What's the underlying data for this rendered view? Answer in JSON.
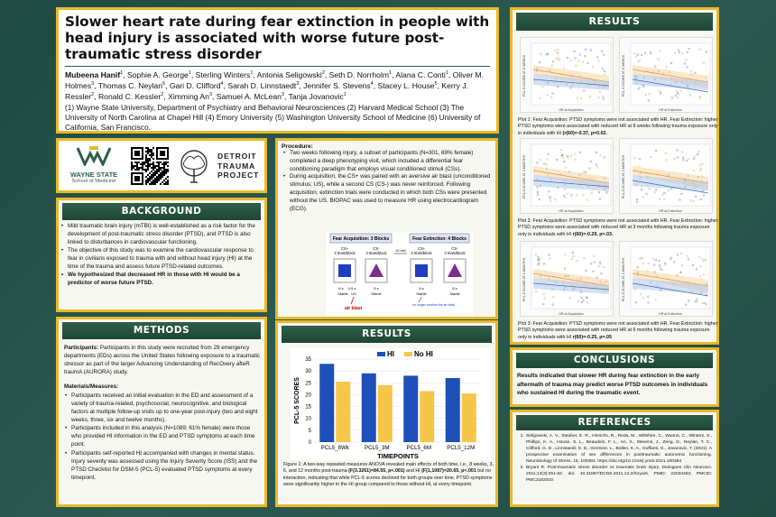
{
  "title": "Slower heart rate during fear extinction in people with head injury is associated with worse future post-traumatic stress disorder",
  "authors": [
    {
      "name": "Mubeena Hanif",
      "sup": "1",
      "bold": true
    },
    {
      "name": ", Sophie A. George",
      "sup": "1"
    },
    {
      "name": ", Sterling Winters",
      "sup": "1"
    },
    {
      "name": ", Antonia Seligowski",
      "sup": "2"
    },
    {
      "name": ", Seth D. Norrholm",
      "sup": "1"
    },
    {
      "name": ", Alana C. Conti",
      "sup": "1"
    },
    {
      "name": ", Oliver M. Holmes",
      "sup": "3"
    },
    {
      "name": ", Thomas C. Neylan",
      "sup": "6"
    },
    {
      "name": ", Gari D. Clifford",
      "sup": "4"
    },
    {
      "name": ", Sarah D. Linnstaedt",
      "sup": "3"
    },
    {
      "name": ", Jennifer S. Stevens",
      "sup": "4"
    },
    {
      "name": ", Stacey L. House",
      "sup": "5"
    },
    {
      "name": ", Kerry J. Ressler",
      "sup": "2"
    },
    {
      "name": ", Ronald C. Kessler",
      "sup": "2"
    },
    {
      "name": ", Ximming An",
      "sup": "3"
    },
    {
      "name": ", Samuel A. McLean",
      "sup": "3"
    },
    {
      "name": ", Tanja Jovanovic",
      "sup": "1"
    }
  ],
  "affiliations": "(1) Wayne State University, Department of Psychiatry and Behavioral Neurosciences (2) Harvard Medical School (3) The University of North Carolina at Chapel Hill (4) Emory University (5) Washington University School of Medicine (6) University of California, San Francisco.",
  "logos": {
    "wsu1": "WAYNE STATE",
    "wsu2": "School of Medicine",
    "dtp": "DETROIT TRAUMA PROJECT"
  },
  "background": {
    "header": "BACKGROUND",
    "items": [
      "Mild traumatic brain injury (mTBI) is well-established as a risk factor for the development of post-traumatic stress disorder (PTSD), and PTSD is also linked to disturbances in cardiovascular functioning.",
      "The objective of this study was to examine the cardiovascular response to fear in civilians exposed to trauma with and without head injury (HI) at the time of the trauma and assess future PTSD-related outcomes.",
      "We hypothesized that decreased HR in those with HI would be a predictor of worse future PTSD."
    ]
  },
  "methods": {
    "header": "METHODS",
    "participants_label": "Participants:",
    "participants": "Participants in this study were recruited from 29 emergency departments (EDs) across the United States following exposure to a traumatic stressor as part of the larger Advancing Understanding of RecOvery afteR traumA (AURORA) study.",
    "measures_label": "Materials/Measures:",
    "items": [
      "Participants received an initial evaluation in the ED and assessment of a variety of trauma-related, psychosocial, neurocognitive, and biological factors at multiple follow-up visits up to one-year post-injury (two and eight weeks, three, six and twelve months).",
      "Participants included in this analysis (N=1089; 61% female) were those who provided HI information in the ED and PTSD symptoms at each time point.",
      "Participants self-reported HI accompanied with changes in mental status. Injury severity was assessed using the Injury Severity Score (ISS) and the PTSD Checklist for DSM-5 (PCL-5) evaluated PTSD symptoms at every timepoint."
    ]
  },
  "procedure": {
    "label": "Procedure:",
    "items": [
      "Two weeks following injury, a subset of participants (N=301, 69% female) completed a deep phenotyping visit, which included a differential fear conditioning paradigm that employs visual conditioned stimuli (CSs).",
      "During acquisition, the CS+ was paired with an aversive air blast (unconditioned stimulus; US), while a second CS (CS-) was never reinforced. Following acquisition, extinction trials were conducted in which both CSs were presented without the US. BIOPAC was used to measure HR using electrocardiogram (ECG)."
    ]
  },
  "diagram": {
    "acq": "Fear Acquisition: 3 Blocks",
    "ext": "Fear Extinction: 4 Blocks",
    "gap": "10 min",
    "csplus": "CS+",
    "csminus": "CS-",
    "trials": "3 trials/block",
    "sec6": "6 s",
    "sec05": "0.5 s",
    "startle": "Startle",
    "us": "US",
    "airblast": "air blast",
    "noblast": "no longer receive the air blast"
  },
  "results_mid": {
    "header": "RESULTS",
    "caption_pre": "Figure 1: A two-way repeated measures ANOVA revealed main effects of both time, i.e., 8 weeks, 3, 6, and 12 months post-trauma ",
    "caption_b1": "(F(3.3261)=84.55, p<.001)",
    "caption_mid": " and HI ",
    "caption_b2": "(F(1,1087)=20.65, p<.001",
    "caption_post": " but no interaction, indicating that while PCL-5 scores declined for both groups over time, PTSD symptoms were significantly higher in the HI group compared to those without HI, at every timepoint."
  },
  "chart_data": {
    "type": "bar",
    "categories": [
      "PCL5_8Wk",
      "PCL5_3M",
      "PCL5_6M",
      "PCL5_12M"
    ],
    "series": [
      {
        "name": "HI",
        "values": [
          33,
          29,
          28,
          27
        ],
        "color": "#1f4fb8"
      },
      {
        "name": "No HI",
        "values": [
          25.5,
          24,
          21.5,
          20.5
        ],
        "color": "#f5c64a"
      }
    ],
    "xlabel": "TIMEPOINTS",
    "ylabel": "PCL-5 SCORES",
    "ylim": [
      0,
      35
    ],
    "yticks": [
      0,
      5,
      10,
      15,
      20,
      25,
      30,
      35
    ],
    "legend": "top"
  },
  "results_right": {
    "header": "RESULTS",
    "plot_labels": {
      "y1": "PCL-5 SCORE AT 8 WEEKS",
      "y2": "PCL-5 SCORE AT 3 MONTHS",
      "y3": "PCL-5 SCORE AT 6 MONTHS",
      "xa": "HR at Acquisition",
      "xe": "HR at Extinction"
    },
    "cap1": "Plot 1: Fear Acquisition: PTSD symptoms were not associated with HR. Fear Extinction: higher PTSD symptoms were associated with reduced HR at 8 weeks following trauma exposure only in individuals with HI ",
    "cap1b": "(r(60)=-0.37, p=0.02.",
    "cap2": "Plot 2: Fear Acquisition: PTSD symptoms were not associated with HR. Fear Extinction: higher PTSD symptoms were associated with reduced HR at 3 months following trauma exposure only in individuals with HI ",
    "cap2b": "r(60)=-0.29, p=.03.",
    "cap3": "Plot 3: Fear Acquisition: PTSD symptoms were not associated with HR. Fear Extinction: higher PTSD symptoms were associated with reduced HR at 6 months following trauma exposure only in individuals with HI ",
    "cap3b": "r(60)=-0.25, p=.05"
  },
  "conclusions": {
    "header": "CONCLUSIONS",
    "text": "Results indicated that slower HR during fear extinction in the early aftermath of trauma may predict worse PTSD outcomes in individuals who sustained HI during the traumatic event."
  },
  "references": {
    "header": "REFERENCES",
    "items": [
      "Seligowski, A. V., Steuber, E. R., Hinrichs, R., Reda, M., Wiltshire, C., Wanna, C., Winters, S., Phillips, K. A., House, S. L., Beaudoin, F. L., An, X., Stevens, J., Zeng, D., Neylan, T. C., Clifford, G. D., Linnstaedt, S. D., Germine, L., Bollen, K. A., Guffanti, G., Jovanovic, T. (2021). A prospective examination of sex differences in posttraumatic autonomic functioning. Neurobiology of Stress, 15, 100384. https://doi.org/10.1016/j.ynstr.2021.100384",
      "Bryant R. Post-traumatic stress disorder vs traumatic brain injury. Dialogues Clin Neurosci. 2011;13(3):251-62. doi: 10.31887/DCNS.2011.13.2/rbryant. PMID: 22034252; PMCID: PMC3182010."
    ]
  },
  "colors": {
    "gold": "#e8b92a",
    "green": "#2f5f4a",
    "bluebar": "#1f4fb8",
    "yellowbar": "#f5c64a"
  }
}
